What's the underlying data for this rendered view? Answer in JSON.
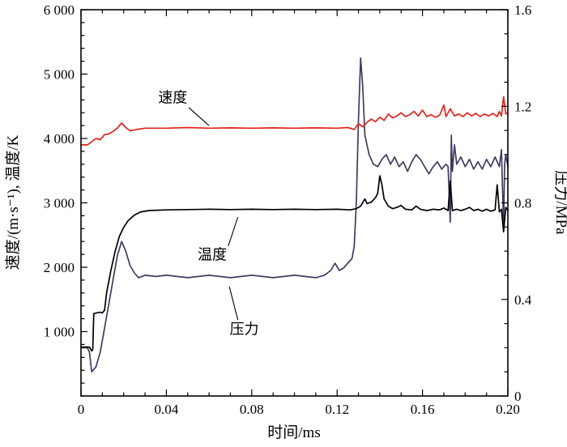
{
  "chart_data": {
    "type": "line",
    "title": "",
    "xlabel": "时间/ms",
    "ylabel_left": "速度/(m·s⁻¹), 温度/K",
    "ylabel_right": "压力/MPa",
    "x_range": [
      0,
      0.2
    ],
    "y_left_range": [
      0,
      6000
    ],
    "y_right_range": [
      0,
      1.6
    ],
    "grid": false,
    "x_ticks": {
      "major": [
        0,
        0.04,
        0.08,
        0.12,
        0.16,
        0.2
      ],
      "labels": [
        "0",
        "0.04",
        "0.08",
        "0.12",
        "0.16",
        "0.20"
      ],
      "minor_step": 0.01
    },
    "y_left_ticks": {
      "major": [
        1000,
        2000,
        3000,
        4000,
        5000,
        6000
      ],
      "labels": [
        "1 000",
        "2 000",
        "3 000",
        "4 000",
        "5 000",
        "6 000"
      ],
      "minor_step": 200
    },
    "y_right_ticks": {
      "major": [
        0,
        0.4,
        0.8,
        1.2,
        1.6
      ],
      "labels": [
        "0",
        "0.4",
        "0.8",
        "1.2",
        "1.6"
      ],
      "minor_step": 0.1
    },
    "series": [
      {
        "name": "速度",
        "color": "#e2231a",
        "axis": "left",
        "width": 1.7,
        "points": [
          [
            0,
            3900
          ],
          [
            0.003,
            3900
          ],
          [
            0.005,
            3950
          ],
          [
            0.007,
            4000
          ],
          [
            0.009,
            3980
          ],
          [
            0.011,
            4060
          ],
          [
            0.013,
            4070
          ],
          [
            0.015,
            4110
          ],
          [
            0.017,
            4160
          ],
          [
            0.019,
            4240
          ],
          [
            0.021,
            4170
          ],
          [
            0.023,
            4120
          ],
          [
            0.026,
            4140
          ],
          [
            0.03,
            4160
          ],
          [
            0.04,
            4160
          ],
          [
            0.05,
            4170
          ],
          [
            0.06,
            4160
          ],
          [
            0.07,
            4165
          ],
          [
            0.08,
            4160
          ],
          [
            0.09,
            4165
          ],
          [
            0.1,
            4160
          ],
          [
            0.11,
            4165
          ],
          [
            0.12,
            4160
          ],
          [
            0.125,
            4170
          ],
          [
            0.128,
            4140
          ],
          [
            0.13,
            4230
          ],
          [
            0.132,
            4180
          ],
          [
            0.134,
            4250
          ],
          [
            0.136,
            4300
          ],
          [
            0.138,
            4260
          ],
          [
            0.14,
            4330
          ],
          [
            0.142,
            4280
          ],
          [
            0.144,
            4380
          ],
          [
            0.146,
            4320
          ],
          [
            0.148,
            4350
          ],
          [
            0.15,
            4400
          ],
          [
            0.152,
            4340
          ],
          [
            0.154,
            4370
          ],
          [
            0.156,
            4420
          ],
          [
            0.158,
            4350
          ],
          [
            0.16,
            4440
          ],
          [
            0.162,
            4340
          ],
          [
            0.164,
            4370
          ],
          [
            0.166,
            4330
          ],
          [
            0.168,
            4360
          ],
          [
            0.17,
            4520
          ],
          [
            0.171,
            4340
          ],
          [
            0.173,
            4460
          ],
          [
            0.175,
            4350
          ],
          [
            0.177,
            4380
          ],
          [
            0.179,
            4340
          ],
          [
            0.181,
            4400
          ],
          [
            0.183,
            4350
          ],
          [
            0.185,
            4390
          ],
          [
            0.187,
            4340
          ],
          [
            0.189,
            4380
          ],
          [
            0.191,
            4350
          ],
          [
            0.193,
            4390
          ],
          [
            0.195,
            4340
          ],
          [
            0.196,
            4420
          ],
          [
            0.197,
            4350
          ],
          [
            0.198,
            4650
          ],
          [
            0.199,
            4380
          ],
          [
            0.2,
            4400
          ]
        ]
      },
      {
        "name": "温度",
        "color": "#000000",
        "axis": "left",
        "width": 1.7,
        "points": [
          [
            0,
            760
          ],
          [
            0.004,
            760
          ],
          [
            0.005,
            700
          ],
          [
            0.0055,
            720
          ],
          [
            0.006,
            1280
          ],
          [
            0.009,
            1300
          ],
          [
            0.01,
            1290
          ],
          [
            0.011,
            1330
          ],
          [
            0.012,
            1600
          ],
          [
            0.014,
            1950
          ],
          [
            0.016,
            2250
          ],
          [
            0.018,
            2480
          ],
          [
            0.02,
            2620
          ],
          [
            0.022,
            2720
          ],
          [
            0.025,
            2810
          ],
          [
            0.028,
            2860
          ],
          [
            0.032,
            2880
          ],
          [
            0.04,
            2890
          ],
          [
            0.05,
            2895
          ],
          [
            0.06,
            2900
          ],
          [
            0.07,
            2895
          ],
          [
            0.08,
            2900
          ],
          [
            0.09,
            2895
          ],
          [
            0.1,
            2900
          ],
          [
            0.11,
            2895
          ],
          [
            0.12,
            2900
          ],
          [
            0.126,
            2890
          ],
          [
            0.129,
            2910
          ],
          [
            0.131,
            2950
          ],
          [
            0.133,
            3060
          ],
          [
            0.134,
            2990
          ],
          [
            0.136,
            3010
          ],
          [
            0.138,
            3080
          ],
          [
            0.139,
            3150
          ],
          [
            0.14,
            3420
          ],
          [
            0.141,
            3280
          ],
          [
            0.142,
            3060
          ],
          [
            0.144,
            2950
          ],
          [
            0.146,
            2910
          ],
          [
            0.148,
            2930
          ],
          [
            0.15,
            2960
          ],
          [
            0.152,
            2900
          ],
          [
            0.155,
            2890
          ],
          [
            0.157,
            2950
          ],
          [
            0.159,
            2900
          ],
          [
            0.162,
            2880
          ],
          [
            0.165,
            2900
          ],
          [
            0.168,
            2890
          ],
          [
            0.17,
            2920
          ],
          [
            0.172,
            2880
          ],
          [
            0.173,
            3340
          ],
          [
            0.174,
            2880
          ],
          [
            0.176,
            2900
          ],
          [
            0.178,
            2880
          ],
          [
            0.18,
            2900
          ],
          [
            0.182,
            2930
          ],
          [
            0.184,
            2880
          ],
          [
            0.186,
            2900
          ],
          [
            0.188,
            2870
          ],
          [
            0.19,
            2900
          ],
          [
            0.192,
            2870
          ],
          [
            0.194,
            2890
          ],
          [
            0.195,
            3280
          ],
          [
            0.196,
            2860
          ],
          [
            0.197,
            2900
          ],
          [
            0.198,
            2550
          ],
          [
            0.199,
            2930
          ],
          [
            0.2,
            2880
          ]
        ]
      },
      {
        "name": "压力",
        "color": "#433a5e",
        "axis": "right",
        "width": 1.7,
        "points": [
          [
            0,
            0.2
          ],
          [
            0.003,
            0.2
          ],
          [
            0.004,
            0.18
          ],
          [
            0.005,
            0.1
          ],
          [
            0.007,
            0.12
          ],
          [
            0.009,
            0.18
          ],
          [
            0.011,
            0.28
          ],
          [
            0.013,
            0.38
          ],
          [
            0.015,
            0.48
          ],
          [
            0.017,
            0.58
          ],
          [
            0.019,
            0.64
          ],
          [
            0.021,
            0.6
          ],
          [
            0.023,
            0.54
          ],
          [
            0.025,
            0.51
          ],
          [
            0.027,
            0.49
          ],
          [
            0.03,
            0.5
          ],
          [
            0.035,
            0.495
          ],
          [
            0.04,
            0.5
          ],
          [
            0.05,
            0.49
          ],
          [
            0.06,
            0.5
          ],
          [
            0.07,
            0.49
          ],
          [
            0.08,
            0.5
          ],
          [
            0.09,
            0.49
          ],
          [
            0.1,
            0.5
          ],
          [
            0.11,
            0.49
          ],
          [
            0.114,
            0.5
          ],
          [
            0.117,
            0.52
          ],
          [
            0.119,
            0.55
          ],
          [
            0.121,
            0.52
          ],
          [
            0.123,
            0.53
          ],
          [
            0.125,
            0.55
          ],
          [
            0.127,
            0.57
          ],
          [
            0.128,
            0.62
          ],
          [
            0.129,
            0.8
          ],
          [
            0.13,
            1.15
          ],
          [
            0.131,
            1.4
          ],
          [
            0.132,
            1.28
          ],
          [
            0.133,
            1.08
          ],
          [
            0.135,
            1.0
          ],
          [
            0.137,
            0.96
          ],
          [
            0.139,
            0.95
          ],
          [
            0.141,
            0.98
          ],
          [
            0.143,
            1.0
          ],
          [
            0.145,
            0.96
          ],
          [
            0.147,
            0.99
          ],
          [
            0.149,
            0.95
          ],
          [
            0.151,
            0.97
          ],
          [
            0.153,
            0.93
          ],
          [
            0.155,
            0.97
          ],
          [
            0.157,
            1.0
          ],
          [
            0.159,
            0.98
          ],
          [
            0.161,
            0.95
          ],
          [
            0.163,
            0.92
          ],
          [
            0.165,
            0.95
          ],
          [
            0.167,
            0.97
          ],
          [
            0.169,
            0.94
          ],
          [
            0.171,
            0.96
          ],
          [
            0.172,
            0.95
          ],
          [
            0.173,
            0.72
          ],
          [
            0.1735,
            1.08
          ],
          [
            0.174,
            0.93
          ],
          [
            0.175,
            1.04
          ],
          [
            0.176,
            0.96
          ],
          [
            0.178,
            0.99
          ],
          [
            0.18,
            0.95
          ],
          [
            0.182,
            0.98
          ],
          [
            0.184,
            0.94
          ],
          [
            0.186,
            0.97
          ],
          [
            0.188,
            0.94
          ],
          [
            0.19,
            0.98
          ],
          [
            0.192,
            0.95
          ],
          [
            0.194,
            0.99
          ],
          [
            0.196,
            0.95
          ],
          [
            0.197,
            1.02
          ],
          [
            0.198,
            0.7
          ],
          [
            0.1985,
            0.96
          ],
          [
            0.199,
            1.0
          ],
          [
            0.2,
            0.95
          ]
        ]
      }
    ],
    "annotations": [
      {
        "text": "速度",
        "x": 0.043,
        "y": 4560,
        "line": {
          "x1": 0.0505,
          "y1": 4480,
          "x2": 0.06,
          "y2": 4200
        }
      },
      {
        "text": "温度",
        "x": 0.0615,
        "y": 2120,
        "line": {
          "x1": 0.069,
          "y1": 2330,
          "x2": 0.0735,
          "y2": 2780
        }
      },
      {
        "text": "压力",
        "x": 0.0765,
        "y": 960,
        "line": {
          "x1": 0.0735,
          "y1": 1180,
          "x2": 0.0695,
          "y2": 1700
        }
      }
    ]
  }
}
